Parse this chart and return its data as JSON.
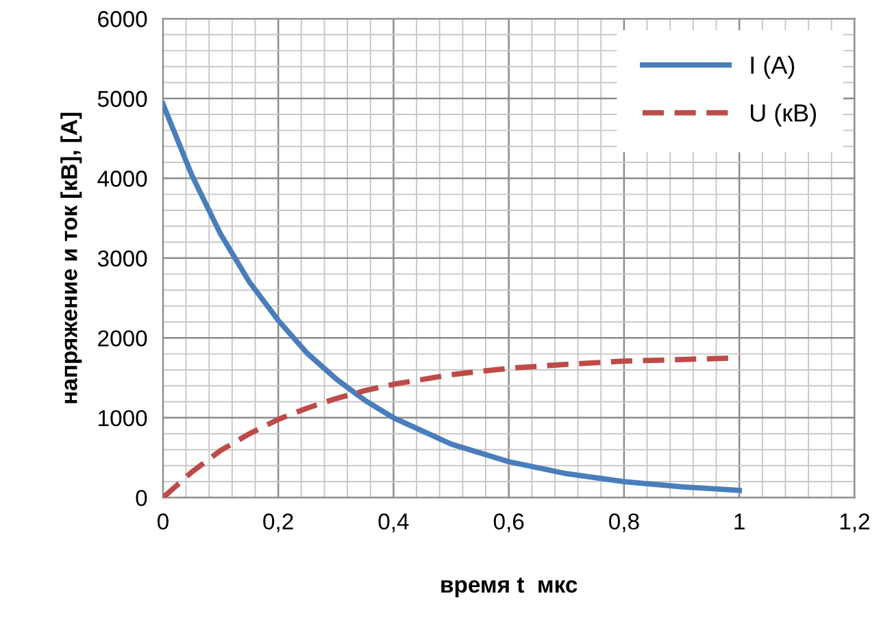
{
  "chart_data": {
    "type": "line",
    "xlabel": "время t  мкс",
    "ylabel": "напряжение и ток [кВ], [А]",
    "x": [
      0,
      0.05,
      0.1,
      0.15,
      0.2,
      0.25,
      0.3,
      0.35,
      0.4,
      0.5,
      0.6,
      0.7,
      0.8,
      0.9,
      1
    ],
    "series": [
      {
        "name": "I (A)",
        "color": "#4a7ebb",
        "line_style": "solid",
        "values": [
          4930,
          4040,
          3300,
          2700,
          2220,
          1810,
          1490,
          1220,
          1000,
          670,
          450,
          300,
          200,
          135,
          90
        ]
      },
      {
        "name": "U (кВ)",
        "color": "#be4b48",
        "line_style": "dashed",
        "values": [
          0,
          320,
          590,
          800,
          980,
          1120,
          1240,
          1340,
          1420,
          1540,
          1620,
          1670,
          1710,
          1730,
          1750
        ]
      }
    ],
    "xlim": [
      0,
      1.2
    ],
    "xticks": [
      0,
      {
        "value": 0.2,
        "label": "0,2"
      },
      {
        "value": 0.4,
        "label": "0,4"
      },
      {
        "value": 0.6,
        "label": "0,6"
      },
      {
        "value": 0.8,
        "label": "0,8"
      },
      1,
      {
        "value": 1.2,
        "label": "1,2"
      }
    ],
    "ylim": [
      0,
      6000
    ],
    "yticks": [
      0,
      1000,
      2000,
      3000,
      4000,
      5000,
      6000
    ],
    "grid": true,
    "legend": "top right",
    "marker": "none"
  }
}
